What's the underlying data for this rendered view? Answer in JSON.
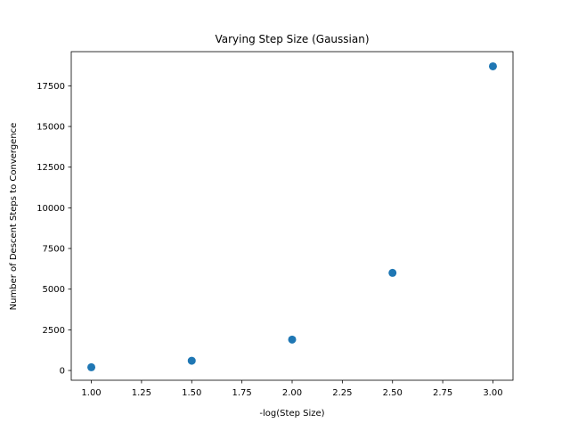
{
  "chart_data": {
    "type": "scatter",
    "title": "Varying Step Size (Gaussian)",
    "xlabel": "-log(Step Size)",
    "ylabel": "Number of Descent Steps to Convergence",
    "xlim": [
      0.9,
      3.1
    ],
    "ylim": [
      -600,
      19600
    ],
    "x_ticks": [
      1.0,
      1.25,
      1.5,
      1.75,
      2.0,
      2.25,
      2.5,
      2.75,
      3.0
    ],
    "x_tick_labels": [
      "1.00",
      "1.25",
      "1.50",
      "1.75",
      "2.00",
      "2.25",
      "2.50",
      "2.75",
      "3.00"
    ],
    "y_ticks": [
      0,
      2500,
      5000,
      7500,
      10000,
      12500,
      15000,
      17500
    ],
    "y_tick_labels": [
      "0",
      "2500",
      "5000",
      "7500",
      "10000",
      "12500",
      "15000",
      "17500"
    ],
    "grid": false,
    "series": [
      {
        "x": [
          1.0,
          1.5,
          2.0,
          2.5,
          3.0
        ],
        "y": [
          200,
          600,
          1900,
          6000,
          18700
        ],
        "color": "#1f77b4"
      }
    ]
  }
}
